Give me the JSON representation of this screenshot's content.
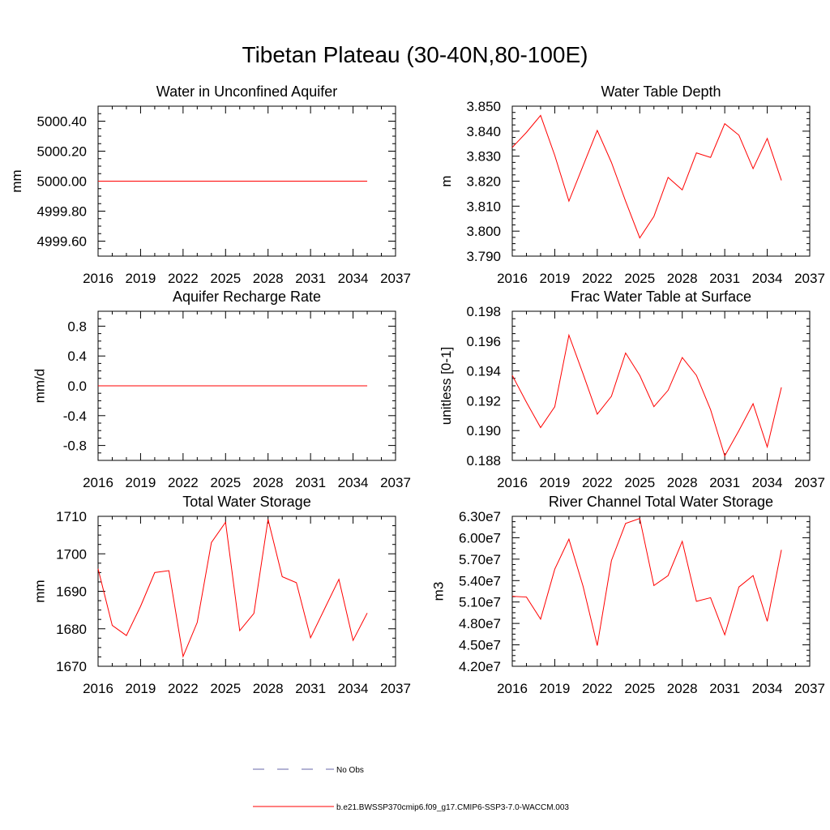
{
  "page_title": "Tibetan Plateau (30-40N,80-100E)",
  "colors": {
    "model_line": "#ff0000",
    "obs_line": "#6666aa",
    "axis": "#000000"
  },
  "legend": {
    "obs_label": "No Obs",
    "model_label": "b.e21.BWSSP370cmip6.f09_g17.CMIP6-SSP3-7.0-WACCM.003"
  },
  "chart_data": [
    {
      "type": "line",
      "title": "Water in Unconfined Aquifer",
      "ylabel": "mm",
      "xlim": [
        2016,
        2037
      ],
      "ylim": [
        4999.5,
        5000.5
      ],
      "x_ticks": [
        "2016",
        "2019",
        "2022",
        "2025",
        "2028",
        "2031",
        "2034",
        "2037"
      ],
      "y_ticks": [
        "4999.60",
        "4999.80",
        "5000.00",
        "5000.20",
        "5000.40"
      ],
      "x": [
        2016,
        2017,
        2018,
        2019,
        2020,
        2021,
        2022,
        2023,
        2024,
        2025,
        2026,
        2027,
        2028,
        2029,
        2030,
        2031,
        2032,
        2033,
        2034,
        2035
      ],
      "values": [
        5000.0,
        5000.0,
        5000.0,
        5000.0,
        5000.0,
        5000.0,
        5000.0,
        5000.0,
        5000.0,
        5000.0,
        5000.0,
        5000.0,
        5000.0,
        5000.0,
        5000.0,
        5000.0,
        5000.0,
        5000.0,
        5000.0,
        5000.0
      ]
    },
    {
      "type": "line",
      "title": "Water Table Depth",
      "ylabel": "m",
      "xlim": [
        2016,
        2037
      ],
      "ylim": [
        3.79,
        3.85
      ],
      "x_ticks": [
        "2016",
        "2019",
        "2022",
        "2025",
        "2028",
        "2031",
        "2034",
        "2037"
      ],
      "y_ticks": [
        "3.790",
        "3.800",
        "3.810",
        "3.820",
        "3.830",
        "3.840",
        "3.850"
      ],
      "x": [
        2016,
        2017,
        2018,
        2019,
        2020,
        2021,
        2022,
        2023,
        2024,
        2025,
        2026,
        2027,
        2028,
        2029,
        2030,
        2031,
        2032,
        2033,
        2034,
        2035
      ],
      "values": [
        3.8335,
        3.8395,
        3.8463,
        3.8303,
        3.812,
        3.8262,
        3.8403,
        3.8275,
        3.812,
        3.7973,
        3.8059,
        3.8215,
        3.8165,
        3.8313,
        3.8295,
        3.843,
        3.8384,
        3.825,
        3.8371,
        3.8203
      ]
    },
    {
      "type": "line",
      "title": "Aquifer Recharge Rate",
      "ylabel": "mm/d",
      "xlim": [
        2016,
        2037
      ],
      "ylim": [
        -1.0,
        1.0
      ],
      "x_ticks": [
        "2016",
        "2019",
        "2022",
        "2025",
        "2028",
        "2031",
        "2034",
        "2037"
      ],
      "y_ticks": [
        "-0.8",
        "-0.4",
        "0.0",
        "0.4",
        "0.8"
      ],
      "x": [
        2016,
        2017,
        2018,
        2019,
        2020,
        2021,
        2022,
        2023,
        2024,
        2025,
        2026,
        2027,
        2028,
        2029,
        2030,
        2031,
        2032,
        2033,
        2034,
        2035
      ],
      "values": [
        0.0,
        0.0,
        0.0,
        0.0,
        0.0,
        0.0,
        0.0,
        0.0,
        0.0,
        0.0,
        0.0,
        0.0,
        0.0,
        0.0,
        0.0,
        0.0,
        0.0,
        0.0,
        0.0,
        0.0
      ]
    },
    {
      "type": "line",
      "title": "Frac Water Table at Surface",
      "ylabel": "unitless [0-1]",
      "xlim": [
        2016,
        2037
      ],
      "ylim": [
        0.188,
        0.198
      ],
      "x_ticks": [
        "2016",
        "2019",
        "2022",
        "2025",
        "2028",
        "2031",
        "2034",
        "2037"
      ],
      "y_ticks": [
        "0.188",
        "0.190",
        "0.192",
        "0.194",
        "0.196",
        "0.198"
      ],
      "x": [
        2016,
        2017,
        2018,
        2019,
        2020,
        2021,
        2022,
        2023,
        2024,
        2025,
        2026,
        2027,
        2028,
        2029,
        2030,
        2031,
        2032,
        2033,
        2034,
        2035
      ],
      "values": [
        0.1937,
        0.1919,
        0.1902,
        0.1916,
        0.1964,
        0.1938,
        0.1911,
        0.1923,
        0.1952,
        0.1937,
        0.1916,
        0.1927,
        0.1949,
        0.1937,
        0.1914,
        0.1883,
        0.19,
        0.1918,
        0.1889,
        0.1929
      ]
    },
    {
      "type": "line",
      "title": "Total Water Storage",
      "ylabel": "mm",
      "xlim": [
        2016,
        2037
      ],
      "ylim": [
        1670,
        1710
      ],
      "x_ticks": [
        "2016",
        "2019",
        "2022",
        "2025",
        "2028",
        "2031",
        "2034",
        "2037"
      ],
      "y_ticks": [
        "1670",
        "1680",
        "1690",
        "1700",
        "1710"
      ],
      "x": [
        2016,
        2017,
        2018,
        2019,
        2020,
        2021,
        2022,
        2023,
        2024,
        2025,
        2026,
        2027,
        2028,
        2029,
        2030,
        2031,
        2032,
        2033,
        2034,
        2035
      ],
      "values": [
        1696.0,
        1680.9,
        1678.2,
        1686.0,
        1695.0,
        1695.5,
        1672.6,
        1681.7,
        1703.0,
        1708.4,
        1679.5,
        1684.1,
        1709.2,
        1693.9,
        1692.3,
        1677.6,
        1685.4,
        1693.2,
        1676.9,
        1684.2
      ]
    },
    {
      "type": "line",
      "title": "River Channel Total Water Storage",
      "ylabel": "m3",
      "xlim": [
        2016,
        2037
      ],
      "ylim": [
        42000000,
        63000000
      ],
      "x_ticks": [
        "2016",
        "2019",
        "2022",
        "2025",
        "2028",
        "2031",
        "2034",
        "2037"
      ],
      "y_ticks": [
        "4.20e7",
        "4.50e7",
        "4.80e7",
        "5.10e7",
        "5.40e7",
        "5.70e7",
        "6.00e7",
        "6.30e7"
      ],
      "x": [
        2016,
        2017,
        2018,
        2019,
        2020,
        2021,
        2022,
        2023,
        2024,
        2025,
        2026,
        2027,
        2028,
        2029,
        2030,
        2031,
        2032,
        2033,
        2034,
        2035
      ],
      "values": [
        51800000,
        51700000,
        48600000,
        55600000,
        59800000,
        53200000,
        44900000,
        56800000,
        62000000,
        62700000,
        53300000,
        54700000,
        59500000,
        51100000,
        51600000,
        46400000,
        53100000,
        54700000,
        48300000,
        58300000
      ]
    }
  ]
}
